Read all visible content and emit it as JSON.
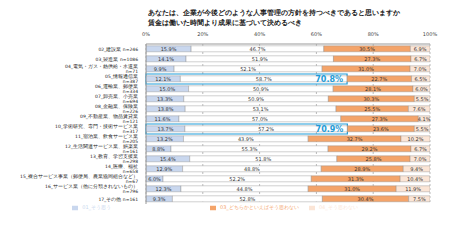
{
  "chart_data": {
    "type": "bar",
    "orientation": "horizontal",
    "stacked": true,
    "data_labels": true,
    "grid": true,
    "legend": "bottom",
    "title": "あなたは、企業が今後どのような人事管理の方針を持つべきであると思いますか",
    "subtitle": "賃金は働いた時間より成果に基づいて決めるべき",
    "categories": [
      "02_建設業 n=246",
      "03_製造業 n=1086",
      "04_電気・ガス・熱供給・水道業 n=71",
      "05_情報通信業 n=387",
      "06_運輸業、郵便業 n=334",
      "07_卸売業、小売業 n=694",
      "08_金融業、保険業 n=226",
      "09_不動産業、物品賃貸業 n=121",
      "10_学術研究、専門・技術サービス業 n=317",
      "11_宿泊業、飲食サービス業 n=205",
      "12_生活関連サービス業、娯楽業 n=161",
      "13_教育、学習支援業 n=298",
      "14_医療、福祉 n=658",
      "15_複合サービス事業（郵便局、農業協同組合など） n=67",
      "16_サービス業（他に分類されないもの） n=796",
      "17_その他 n=161"
    ],
    "series": [
      {
        "name": "01_そう思う",
        "color": "#c9d7ee",
        "values": [
          15.9,
          14.1,
          9.9,
          12.1,
          15.0,
          13.3,
          13.8,
          11.6,
          13.7,
          13.2,
          8.8,
          15.4,
          12.9,
          6.0,
          12.3,
          9.3
        ],
        "value_labels": [
          "15.9%",
          "14.1%",
          "9.9%",
          "12.1%",
          "15.0%",
          "13.3%",
          "13.8%",
          "11.6%",
          "13.7%",
          "13.2%",
          "8.8%",
          "15.4%",
          "12.9%",
          "6.0%",
          "12.3%",
          "9.3%"
        ]
      },
      {
        "name": "02_どちらかといえばそう思う",
        "color": "#ffffff",
        "values": [
          46.7,
          51.9,
          52.1,
          58.7,
          50.9,
          50.9,
          53.1,
          57.0,
          57.2,
          43.9,
          55.3,
          51.8,
          48.8,
          52.2,
          44.8,
          52.8
        ],
        "value_labels": [
          "46.7%",
          "51.9%",
          "52.1%",
          "58.7%",
          "50.9%",
          "50.9%",
          "53.1%",
          "57.0%",
          "57.2%",
          "43.9%",
          "55.3%",
          "51.8%",
          "48.8%",
          "52.2%",
          "44.8%",
          "52.8%"
        ]
      },
      {
        "name": "03_どちらかといえばそう思わない",
        "color": "#f4a46a",
        "values": [
          30.5,
          27.3,
          31.0,
          22.7,
          28.1,
          30.3,
          25.5,
          27.3,
          23.6,
          32.7,
          29.2,
          25.8,
          28.9,
          31.3,
          31.0,
          30.4
        ],
        "value_labels": [
          "30.5%",
          "27.3%",
          "31.0%",
          "22.7%",
          "28.1%",
          "30.3%",
          "25.5%",
          "27.3%",
          "23.6%",
          "32.7%",
          "29.2%",
          "25.8%",
          "28.9%",
          "31.3%",
          "31.0%",
          "30.4%"
        ]
      },
      {
        "name": "04_そう思わない",
        "color": "#fbe5d6",
        "values": [
          6.9,
          6.7,
          7.0,
          6.5,
          6.0,
          5.5,
          7.6,
          4.1,
          5.5,
          10.2,
          6.7,
          7.0,
          9.4,
          10.4,
          11.9,
          7.5
        ],
        "value_labels": [
          "6.9%",
          "6.7%",
          "7.0%",
          "6.5%",
          "6.0%",
          "5.5%",
          "7.6%",
          "4.1%",
          "5.5%",
          "10.2%",
          "6.7%",
          "7.0%",
          "9.4%",
          "10.4%",
          "11.9%",
          "7.5%"
        ]
      }
    ],
    "xlim": [
      0,
      100
    ],
    "xticks": [
      {
        "value": 0,
        "label": "0%"
      },
      {
        "value": 20,
        "label": "20%"
      },
      {
        "value": 40,
        "label": "40%"
      },
      {
        "value": 60,
        "label": "60%"
      },
      {
        "value": 80,
        "label": "80%"
      },
      {
        "value": 100,
        "label": "100%"
      }
    ],
    "annotations": [
      {
        "category": "05_情報通信業 n=387",
        "value": 70.8,
        "text": "70.8%",
        "color": "#1f9bd7"
      },
      {
        "category": "10_学術研究、専門・技術サービス業 n=317",
        "value": 70.9,
        "text": "70.9%",
        "color": "#1f9bd7"
      }
    ]
  }
}
